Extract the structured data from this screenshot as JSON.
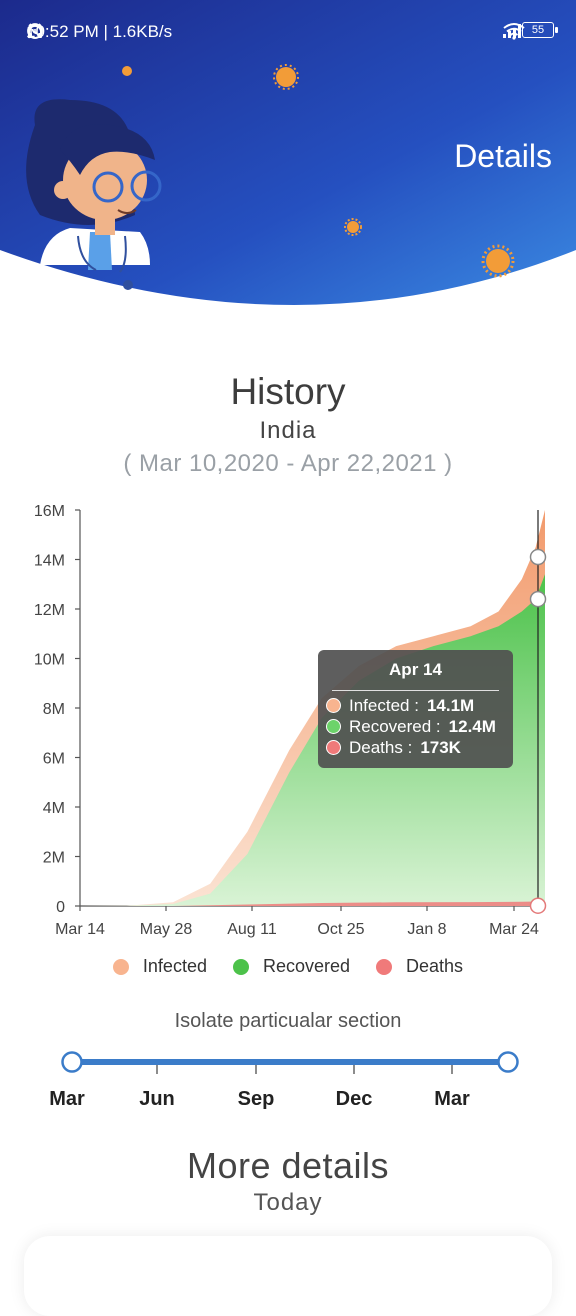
{
  "status_bar": {
    "time_speed": "10:52 PM | 1.6KB/s",
    "battery": "55",
    "icons": [
      "alarm-icon",
      "headphones-icon",
      "whatsapp-icon",
      "signal-icon",
      "wifi-icon",
      "battery-icon"
    ]
  },
  "header": {
    "title": "Details",
    "illustration": "doctor-avatar",
    "colors": {
      "gradient_start": "#1c2d8f",
      "gradient_end": "#3e8be0",
      "virus": "#f29c38"
    }
  },
  "history": {
    "title": "History",
    "country": "India",
    "range": "( Mar 10,2020 - Apr 22,2021 )"
  },
  "chart_data": {
    "type": "area",
    "y_ticks": [
      "0",
      "2M",
      "4M",
      "6M",
      "8M",
      "10M",
      "12M",
      "14M",
      "16M"
    ],
    "x_ticks": [
      "Mar 14",
      "May 28",
      "Aug 11",
      "Oct 25",
      "Jan 8",
      "Mar 24"
    ],
    "ylim": [
      0,
      16000000
    ],
    "series": [
      {
        "name": "Infected",
        "color": "#f5a77a",
        "points": [
          [
            0,
            0
          ],
          [
            0.1,
            10000
          ],
          [
            0.2,
            150000
          ],
          [
            0.28,
            900000
          ],
          [
            0.36,
            3000000
          ],
          [
            0.45,
            6300000
          ],
          [
            0.52,
            8400000
          ],
          [
            0.6,
            9700000
          ],
          [
            0.68,
            10500000
          ],
          [
            0.76,
            10900000
          ],
          [
            0.84,
            11300000
          ],
          [
            0.9,
            11900000
          ],
          [
            0.95,
            13200000
          ],
          [
            0.98,
            14500000
          ],
          [
            1.0,
            16000000
          ]
        ]
      },
      {
        "name": "Recovered",
        "color": "#5cc95a",
        "points": [
          [
            0,
            0
          ],
          [
            0.1,
            5000
          ],
          [
            0.2,
            80000
          ],
          [
            0.28,
            500000
          ],
          [
            0.36,
            2100000
          ],
          [
            0.45,
            5400000
          ],
          [
            0.52,
            7600000
          ],
          [
            0.6,
            9100000
          ],
          [
            0.68,
            10000000
          ],
          [
            0.76,
            10500000
          ],
          [
            0.84,
            10900000
          ],
          [
            0.9,
            11300000
          ],
          [
            0.95,
            11900000
          ],
          [
            0.98,
            12400000
          ],
          [
            1.0,
            13400000
          ]
        ]
      },
      {
        "name": "Deaths",
        "color": "#f07a7a",
        "points": [
          [
            0,
            0
          ],
          [
            0.2,
            2000
          ],
          [
            0.36,
            60000
          ],
          [
            0.52,
            120000
          ],
          [
            0.68,
            150000
          ],
          [
            0.84,
            158000
          ],
          [
            0.95,
            170000
          ],
          [
            1.0,
            185000
          ]
        ]
      }
    ],
    "tooltip": {
      "date": "Apr 14",
      "infected_label": "Infected :",
      "infected_value": "14.1M",
      "recovered_label": "Recovered :",
      "recovered_value": "12.4M",
      "deaths_label": "Deaths :",
      "deaths_value": "173K"
    },
    "legend": [
      {
        "label": "Infected",
        "color": "#f8b48f"
      },
      {
        "label": "Recovered",
        "color": "#4cc24a"
      },
      {
        "label": "Deaths",
        "color": "#f07a7a"
      }
    ]
  },
  "isolate": {
    "label": "Isolate particualar section",
    "months": [
      "Mar",
      "Jun",
      "Sep",
      "Dec",
      "Mar"
    ],
    "range_start": 0,
    "range_end": 1
  },
  "more_details": {
    "title": "More details",
    "subtitle": "Today"
  }
}
